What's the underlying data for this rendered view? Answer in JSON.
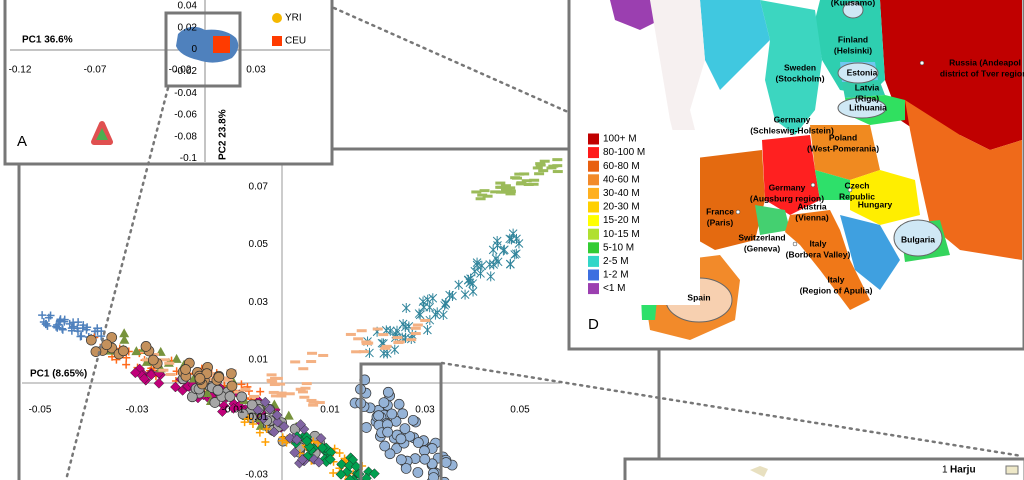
{
  "panel_a": {
    "label": "A",
    "x_axis_title": "PC1 36.6%",
    "y_axis_title": "PC2 23.8%",
    "x_ticks": [
      "-0.12",
      "-0.07",
      "-0.02",
      "0.03"
    ],
    "y_ticks": [
      "0.04",
      "0.02",
      "0",
      "-0.02",
      "-0.04",
      "-0.06",
      "-0.08",
      "-0.1"
    ],
    "legend": [
      "YRI",
      "CEU"
    ]
  },
  "panel_b": {
    "x_axis_title": "PC1 (8.65%)",
    "x_ticks": [
      "-0.05",
      "-0.03",
      "-0.01",
      "0.01",
      "0.03",
      "0.05"
    ],
    "y_ticks": [
      "0.07",
      "0.05",
      "0.03",
      "0.01",
      "-0.01",
      "-0.03"
    ]
  },
  "panel_d": {
    "label": "D",
    "legend": [
      "100+ M",
      "80-100 M",
      "60-80 M",
      "40-60 M",
      "30-40 M",
      "20-30 M",
      "15-20 M",
      "10-15 M",
      "5-10 M",
      "2-5 M",
      "1-2 M",
      "<1 M"
    ],
    "places": [
      [
        "(Kuusamo)"
      ],
      [
        "Finland",
        "(Helsinki)"
      ],
      [
        "Sweden",
        "(Stockholm)"
      ],
      [
        "Estonia"
      ],
      [
        "Latvia",
        "(Riga)"
      ],
      [
        "Lithuania"
      ],
      [
        "Russia (Andeapol",
        "district of Tver region)"
      ],
      [
        "Poland",
        "(West-Pomerania)"
      ],
      [
        "Germany",
        "(Schleswig-Holstein)"
      ],
      [
        "Germany",
        "(Augsburg region)"
      ],
      [
        "Czech",
        "Republic"
      ],
      [
        "Austria",
        "(Vienna)"
      ],
      [
        "Hungary"
      ],
      [
        "France",
        "(Paris)"
      ],
      [
        "Switzerland",
        "(Geneva)"
      ],
      [
        "Italy",
        "(Borbera Valley)"
      ],
      [
        "Bulgaria"
      ],
      [
        "Spain"
      ],
      [
        "Italy",
        "(Region of Apulia)"
      ]
    ]
  },
  "panel_e": {
    "legend": [
      {
        "number": "1",
        "name": "Harju"
      }
    ]
  }
}
